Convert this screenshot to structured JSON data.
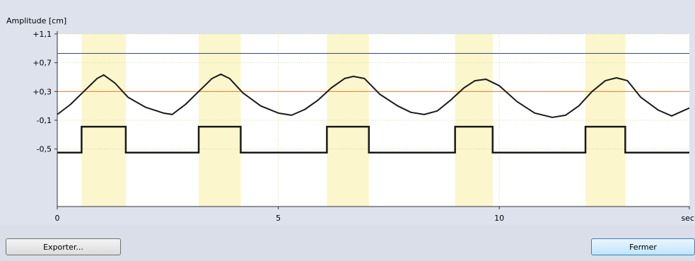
{
  "colors": {
    "background": "#dde2ec",
    "plot_background": "#ffffff",
    "highlight_band": "#fbf6cc",
    "signal_line": "#1a1a1a",
    "orange_threshold": "#e07b3a",
    "blue_threshold": "#3b4a6b",
    "grid": "#d8dcae"
  },
  "buttons": {
    "export_label": "Exporter...",
    "close_label": "Fermer"
  },
  "chart_data": {
    "type": "line",
    "title": "",
    "ylabel": "Amplitude [cm]",
    "xlabel": "sec",
    "xlim": [
      0,
      14.3
    ],
    "ylim": [
      -1.3,
      1.1
    ],
    "y_ticks": [
      "+1,1",
      "+0,7",
      "+0,3",
      "-0,1",
      "-0,5"
    ],
    "y_tick_values": [
      1.1,
      0.7,
      0.3,
      -0.1,
      -0.5
    ],
    "x_ticks": [
      "0",
      "5",
      "10",
      "sec"
    ],
    "x_tick_values": [
      0,
      5,
      10,
      14.3
    ],
    "reference_lines": [
      {
        "y": 0.83,
        "color": "#3b4a6b"
      },
      {
        "y": 0.3,
        "color": "#e07b3a"
      }
    ],
    "highlight_intervals": [
      [
        0.55,
        1.55
      ],
      [
        3.2,
        4.15
      ],
      [
        6.1,
        7.05
      ],
      [
        9.0,
        9.85
      ],
      [
        11.95,
        12.85
      ]
    ],
    "series": [
      {
        "x": [
          0.0,
          0.3,
          0.6,
          0.9,
          1.05,
          1.3,
          1.6,
          2.0,
          2.4,
          2.6,
          2.9,
          3.2,
          3.5,
          3.7,
          3.9,
          4.2,
          4.6,
          5.0,
          5.3,
          5.6,
          5.9,
          6.2,
          6.5,
          6.7,
          6.95,
          7.3,
          7.7,
          8.0,
          8.3,
          8.6,
          8.9,
          9.2,
          9.45,
          9.7,
          10.0,
          10.4,
          10.8,
          11.2,
          11.5,
          11.8,
          12.1,
          12.4,
          12.65,
          12.9,
          13.2,
          13.6,
          13.9,
          14.3
        ],
        "y": [
          -0.02,
          0.12,
          0.3,
          0.48,
          0.53,
          0.42,
          0.22,
          0.08,
          0.0,
          -0.02,
          0.12,
          0.3,
          0.48,
          0.54,
          0.48,
          0.28,
          0.1,
          0.0,
          -0.03,
          0.05,
          0.18,
          0.35,
          0.48,
          0.51,
          0.48,
          0.26,
          0.1,
          0.01,
          -0.02,
          0.03,
          0.18,
          0.35,
          0.45,
          0.47,
          0.38,
          0.16,
          0.0,
          -0.06,
          -0.03,
          0.1,
          0.3,
          0.45,
          0.49,
          0.45,
          0.22,
          0.04,
          -0.04,
          0.07
        ]
      },
      {
        "step_x": [
          0.0,
          0.55,
          0.55,
          1.55,
          1.55,
          3.2,
          3.2,
          4.15,
          4.15,
          6.1,
          6.1,
          7.05,
          7.05,
          9.0,
          9.0,
          9.85,
          9.85,
          11.95,
          11.95,
          12.85,
          12.85,
          14.3
        ],
        "step_y": [
          -0.55,
          -0.55,
          -0.19,
          -0.19,
          -0.55,
          -0.55,
          -0.19,
          -0.19,
          -0.55,
          -0.55,
          -0.19,
          -0.19,
          -0.55,
          -0.55,
          -0.19,
          -0.19,
          -0.55,
          -0.55,
          -0.19,
          -0.19,
          -0.55,
          -0.55
        ]
      }
    ],
    "grid": true,
    "legend": "none"
  }
}
